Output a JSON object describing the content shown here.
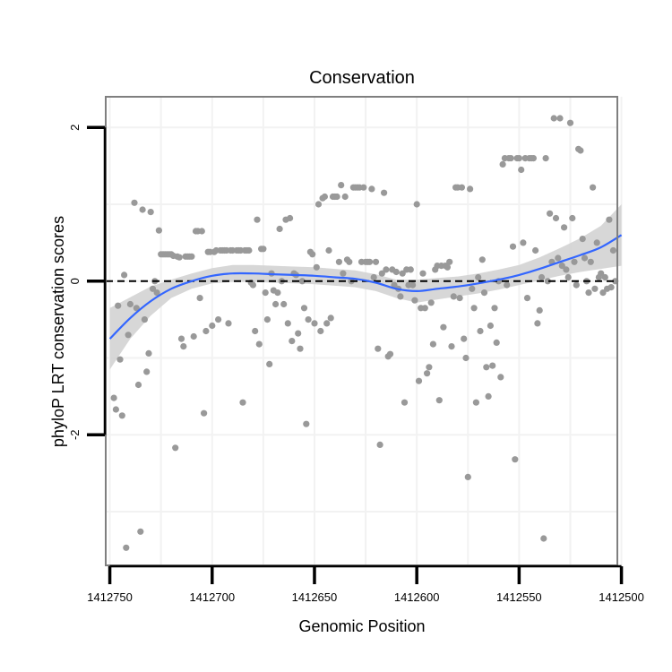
{
  "chart_data": {
    "type": "scatter",
    "title": "Conservation",
    "xlabel": "Genomic Position",
    "ylabel": "phyloP LRT conservation scores",
    "x_reversed": true,
    "xlim": [
      1412752,
      1412502
    ],
    "ylim": [
      -3.7,
      2.4
    ],
    "xticks": [
      1412750,
      1412700,
      1412650,
      1412600,
      1412550,
      1412500
    ],
    "xtick_labels": [
      "1412750",
      "1412700",
      "1412650",
      "1412600",
      "1412550",
      "1412500"
    ],
    "yticks": [
      2,
      0,
      -2
    ],
    "ytick_labels": [
      "2",
      "0",
      "-2"
    ],
    "reference_line": {
      "y": 0,
      "style": "dashed",
      "color": "#000000"
    },
    "grid": true,
    "colors": {
      "points": "#999999",
      "smooth": "#3366ff",
      "band": "#d3d3d3",
      "frame": "#7f7f7f",
      "grid": "#f2f2f2"
    },
    "smooth": {
      "x": [
        1412750,
        1412740,
        1412730,
        1412720,
        1412710,
        1412700,
        1412690,
        1412680,
        1412670,
        1412660,
        1412650,
        1412640,
        1412630,
        1412620,
        1412610,
        1412600,
        1412590,
        1412580,
        1412570,
        1412560,
        1412550,
        1412540,
        1412530,
        1412520,
        1412510,
        1412500
      ],
      "y": [
        -0.75,
        -0.48,
        -0.26,
        -0.1,
        0.0,
        0.07,
        0.1,
        0.1,
        0.09,
        0.08,
        0.07,
        0.05,
        0.03,
        -0.02,
        -0.1,
        -0.13,
        -0.1,
        -0.07,
        -0.03,
        0.02,
        0.08,
        0.16,
        0.25,
        0.34,
        0.44,
        0.6
      ],
      "lower": [
        -1.15,
        -0.75,
        -0.45,
        -0.22,
        -0.1,
        -0.03,
        -0.01,
        -0.01,
        -0.02,
        -0.03,
        -0.04,
        -0.06,
        -0.08,
        -0.13,
        -0.22,
        -0.28,
        -0.24,
        -0.2,
        -0.16,
        -0.11,
        -0.05,
        0.01,
        0.07,
        0.12,
        0.16,
        0.2
      ],
      "upper": [
        -0.35,
        -0.21,
        -0.07,
        0.02,
        0.1,
        0.17,
        0.21,
        0.21,
        0.2,
        0.19,
        0.18,
        0.16,
        0.14,
        0.09,
        0.02,
        0.02,
        0.04,
        0.06,
        0.1,
        0.15,
        0.21,
        0.31,
        0.43,
        0.56,
        0.72,
        1.0
      ]
    },
    "points": [
      [
        1412748,
        -1.52
      ],
      [
        1412747,
        -1.67
      ],
      [
        1412746,
        -0.32
      ],
      [
        1412745,
        -1.02
      ],
      [
        1412744,
        -1.75
      ],
      [
        1412743,
        0.08
      ],
      [
        1412742,
        -3.47
      ],
      [
        1412741,
        -0.7
      ],
      [
        1412740,
        -0.3
      ],
      [
        1412738,
        1.02
      ],
      [
        1412737,
        -0.35
      ],
      [
        1412736,
        -1.35
      ],
      [
        1412735,
        -3.26
      ],
      [
        1412734,
        0.93
      ],
      [
        1412733,
        -0.5
      ],
      [
        1412732,
        -1.18
      ],
      [
        1412731,
        -0.94
      ],
      [
        1412730,
        0.9
      ],
      [
        1412729,
        -0.1
      ],
      [
        1412728,
        0.0
      ],
      [
        1412727,
        -0.15
      ],
      [
        1412726,
        0.66
      ],
      [
        1412725,
        0.35
      ],
      [
        1412724,
        0.35
      ],
      [
        1412723,
        0.35
      ],
      [
        1412722,
        0.35
      ],
      [
        1412721,
        0.35
      ],
      [
        1412720,
        0.35
      ],
      [
        1412719,
        0.33
      ],
      [
        1412718,
        -2.17
      ],
      [
        1412717,
        0.32
      ],
      [
        1412716,
        0.31
      ],
      [
        1412715,
        -0.75
      ],
      [
        1412714,
        -0.85
      ],
      [
        1412713,
        0.32
      ],
      [
        1412712,
        0.32
      ],
      [
        1412711,
        0.32
      ],
      [
        1412710,
        0.32
      ],
      [
        1412709,
        -0.72
      ],
      [
        1412708,
        0.65
      ],
      [
        1412707,
        0.65
      ],
      [
        1412706,
        -0.22
      ],
      [
        1412705,
        0.65
      ],
      [
        1412704,
        -1.72
      ],
      [
        1412703,
        -0.65
      ],
      [
        1412702,
        0.38
      ],
      [
        1412701,
        0.38
      ],
      [
        1412700,
        -0.58
      ],
      [
        1412699,
        0.38
      ],
      [
        1412698,
        0.4
      ],
      [
        1412697,
        -0.5
      ],
      [
        1412696,
        0.4
      ],
      [
        1412695,
        0.4
      ],
      [
        1412694,
        0.4
      ],
      [
        1412693,
        0.4
      ],
      [
        1412692,
        -0.55
      ],
      [
        1412691,
        0.4
      ],
      [
        1412690,
        0.4
      ],
      [
        1412688,
        0.4
      ],
      [
        1412687,
        0.4
      ],
      [
        1412686,
        0.4
      ],
      [
        1412685,
        -1.58
      ],
      [
        1412684,
        0.4
      ],
      [
        1412683,
        0.4
      ],
      [
        1412682,
        0.4
      ],
      [
        1412681,
        -0.02
      ],
      [
        1412680,
        -0.05
      ],
      [
        1412679,
        -0.65
      ],
      [
        1412678,
        0.8
      ],
      [
        1412677,
        -0.82
      ],
      [
        1412676,
        0.42
      ],
      [
        1412675,
        0.42
      ],
      [
        1412674,
        -0.15
      ],
      [
        1412673,
        -0.5
      ],
      [
        1412672,
        -1.08
      ],
      [
        1412671,
        0.1
      ],
      [
        1412670,
        -0.12
      ],
      [
        1412669,
        -0.3
      ],
      [
        1412668,
        -0.15
      ],
      [
        1412667,
        0.68
      ],
      [
        1412666,
        0.0
      ],
      [
        1412665,
        -0.3
      ],
      [
        1412664,
        0.8
      ],
      [
        1412663,
        -0.55
      ],
      [
        1412662,
        0.82
      ],
      [
        1412661,
        -0.78
      ],
      [
        1412660,
        0.1
      ],
      [
        1412659,
        0.08
      ],
      [
        1412658,
        -0.68
      ],
      [
        1412657,
        -0.88
      ],
      [
        1412656,
        0.0
      ],
      [
        1412655,
        -0.35
      ],
      [
        1412654,
        -1.86
      ],
      [
        1412653,
        -0.5
      ],
      [
        1412652,
        0.38
      ],
      [
        1412651,
        0.35
      ],
      [
        1412650,
        -0.55
      ],
      [
        1412649,
        0.18
      ],
      [
        1412648,
        1.0
      ],
      [
        1412647,
        -0.65
      ],
      [
        1412646,
        1.08
      ],
      [
        1412645,
        1.1
      ],
      [
        1412644,
        -0.55
      ],
      [
        1412643,
        0.4
      ],
      [
        1412642,
        -0.48
      ],
      [
        1412641,
        1.1
      ],
      [
        1412640,
        1.1
      ],
      [
        1412639,
        1.1
      ],
      [
        1412638,
        0.25
      ],
      [
        1412637,
        1.25
      ],
      [
        1412636,
        0.1
      ],
      [
        1412635,
        1.1
      ],
      [
        1412634,
        0.28
      ],
      [
        1412633,
        0.25
      ],
      [
        1412632,
        0.0
      ],
      [
        1412631,
        1.22
      ],
      [
        1412630,
        1.22
      ],
      [
        1412629,
        1.22
      ],
      [
        1412628,
        1.22
      ],
      [
        1412627,
        0.25
      ],
      [
        1412626,
        1.22
      ],
      [
        1412625,
        0.25
      ],
      [
        1412624,
        0.25
      ],
      [
        1412623,
        0.25
      ],
      [
        1412622,
        1.2
      ],
      [
        1412621,
        0.05
      ],
      [
        1412620,
        0.25
      ],
      [
        1412619,
        -0.88
      ],
      [
        1412618,
        -2.13
      ],
      [
        1412617,
        0.1
      ],
      [
        1412616,
        1.15
      ],
      [
        1412615,
        0.15
      ],
      [
        1412614,
        -0.98
      ],
      [
        1412613,
        -0.95
      ],
      [
        1412612,
        0.15
      ],
      [
        1412611,
        -0.05
      ],
      [
        1412610,
        0.12
      ],
      [
        1412609,
        -0.1
      ],
      [
        1412608,
        -0.2
      ],
      [
        1412607,
        0.1
      ],
      [
        1412606,
        -1.58
      ],
      [
        1412605,
        0.15
      ],
      [
        1412604,
        -0.05
      ],
      [
        1412603,
        0.15
      ],
      [
        1412602,
        -0.05
      ],
      [
        1412601,
        -0.25
      ],
      [
        1412600,
        1.0
      ],
      [
        1412599,
        -1.3
      ],
      [
        1412598,
        -0.35
      ],
      [
        1412597,
        0.1
      ],
      [
        1412596,
        -0.35
      ],
      [
        1412595,
        -1.2
      ],
      [
        1412594,
        -1.12
      ],
      [
        1412593,
        -0.28
      ],
      [
        1412592,
        -0.82
      ],
      [
        1412591,
        0.15
      ],
      [
        1412590,
        0.2
      ],
      [
        1412589,
        -1.55
      ],
      [
        1412588,
        0.2
      ],
      [
        1412587,
        -0.6
      ],
      [
        1412586,
        0.2
      ],
      [
        1412585,
        0.18
      ],
      [
        1412584,
        0.25
      ],
      [
        1412583,
        -0.85
      ],
      [
        1412582,
        -0.2
      ],
      [
        1412581,
        1.22
      ],
      [
        1412580,
        1.22
      ],
      [
        1412579,
        -0.22
      ],
      [
        1412578,
        1.22
      ],
      [
        1412577,
        -0.75
      ],
      [
        1412576,
        -1.0
      ],
      [
        1412575,
        -2.55
      ],
      [
        1412574,
        1.2
      ],
      [
        1412573,
        -0.1
      ],
      [
        1412572,
        -0.35
      ],
      [
        1412571,
        -1.58
      ],
      [
        1412570,
        0.05
      ],
      [
        1412569,
        -0.65
      ],
      [
        1412568,
        0.28
      ],
      [
        1412567,
        -0.15
      ],
      [
        1412566,
        -1.12
      ],
      [
        1412565,
        -1.5
      ],
      [
        1412564,
        -0.58
      ],
      [
        1412563,
        -1.1
      ],
      [
        1412562,
        -0.35
      ],
      [
        1412561,
        -0.8
      ],
      [
        1412560,
        0.0
      ],
      [
        1412559,
        -1.25
      ],
      [
        1412558,
        1.52
      ],
      [
        1412557,
        1.6
      ],
      [
        1412556,
        -0.05
      ],
      [
        1412555,
        1.6
      ],
      [
        1412554,
        1.6
      ],
      [
        1412553,
        0.45
      ],
      [
        1412552,
        -2.32
      ],
      [
        1412551,
        1.6
      ],
      [
        1412550,
        1.6
      ],
      [
        1412549,
        1.45
      ],
      [
        1412548,
        0.5
      ],
      [
        1412547,
        1.6
      ],
      [
        1412546,
        -0.22
      ],
      [
        1412545,
        1.6
      ],
      [
        1412544,
        1.6
      ],
      [
        1412543,
        1.6
      ],
      [
        1412542,
        0.4
      ],
      [
        1412541,
        -0.55
      ],
      [
        1412540,
        -0.38
      ],
      [
        1412539,
        0.05
      ],
      [
        1412538,
        -3.35
      ],
      [
        1412537,
        1.6
      ],
      [
        1412536,
        0.0
      ],
      [
        1412535,
        0.88
      ],
      [
        1412534,
        0.25
      ],
      [
        1412533,
        2.12
      ],
      [
        1412532,
        0.82
      ],
      [
        1412531,
        0.3
      ],
      [
        1412530,
        2.12
      ],
      [
        1412529,
        0.2
      ],
      [
        1412528,
        0.7
      ],
      [
        1412527,
        0.15
      ],
      [
        1412526,
        0.05
      ],
      [
        1412525,
        2.06
      ],
      [
        1412524,
        0.82
      ],
      [
        1412523,
        0.25
      ],
      [
        1412522,
        -0.05
      ],
      [
        1412521,
        1.72
      ],
      [
        1412520,
        1.7
      ],
      [
        1412519,
        0.55
      ],
      [
        1412518,
        0.3
      ],
      [
        1412517,
        0.0
      ],
      [
        1412516,
        -0.15
      ],
      [
        1412515,
        0.25
      ],
      [
        1412514,
        1.22
      ],
      [
        1412513,
        -0.1
      ],
      [
        1412512,
        0.5
      ],
      [
        1412511,
        0.05
      ],
      [
        1412510,
        0.1
      ],
      [
        1412509,
        -0.15
      ],
      [
        1412508,
        0.05
      ],
      [
        1412507,
        -0.1
      ],
      [
        1412506,
        0.8
      ],
      [
        1412505,
        -0.08
      ],
      [
        1412504,
        0.4
      ],
      [
        1412503,
        0.0
      ]
    ]
  }
}
